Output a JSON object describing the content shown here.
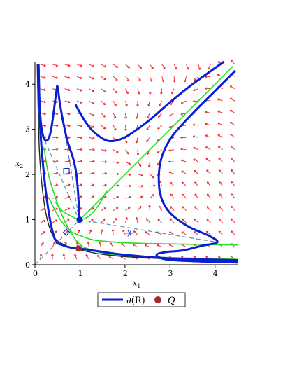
{
  "chart_data": {
    "type": "line",
    "title": "",
    "xlabel": "x",
    "xlabel_sub": "1",
    "ylabel": "x",
    "ylabel_sub": "2",
    "xlim": [
      0,
      4.5
    ],
    "ylim": [
      0,
      4.5
    ],
    "xticks": [
      "0",
      "1",
      "2",
      "3",
      "4"
    ],
    "yticks": [
      "0",
      "1",
      "2",
      "3",
      "4"
    ],
    "grid": false,
    "colors": {
      "boundary": "#0a1ed2",
      "separatrix": "#22dd22",
      "field": "#ee2222",
      "dashed": "#5a8cc0",
      "q_marker": "#a52a2a",
      "dark_curve": "#1a2a2a"
    },
    "legend": {
      "placement": "bottom-center",
      "entries": [
        {
          "label": "∂(R)",
          "style": "thick-blue-line"
        },
        {
          "label": "Q",
          "style": "brown-dot"
        }
      ]
    },
    "series": [
      {
        "name": "∂(R)",
        "role": "boundary-left-branch",
        "points": [
          [
            0.08,
            4.45
          ],
          [
            0.1,
            3.6
          ],
          [
            0.15,
            3.0
          ],
          [
            0.24,
            2.75
          ],
          [
            0.35,
            2.95
          ],
          [
            0.47,
            3.8
          ],
          [
            0.5,
            3.95
          ],
          [
            0.55,
            3.6
          ],
          [
            0.62,
            3.2
          ],
          [
            0.72,
            2.75
          ],
          [
            0.85,
            2.35
          ],
          [
            0.92,
            2.0
          ],
          [
            0.97,
            1.4
          ],
          [
            0.98,
            1.0
          ]
        ]
      },
      {
        "name": "∂(R)",
        "role": "boundary-upper-branch",
        "points": [
          [
            0.9,
            3.55
          ],
          [
            1.1,
            3.2
          ],
          [
            1.3,
            2.95
          ],
          [
            1.6,
            2.75
          ],
          [
            1.9,
            2.78
          ],
          [
            2.2,
            2.95
          ],
          [
            2.6,
            3.25
          ],
          [
            3.0,
            3.6
          ],
          [
            3.5,
            4.0
          ],
          [
            4.2,
            4.5
          ]
        ]
      },
      {
        "name": "∂(R)",
        "role": "boundary-right-branch",
        "points": [
          [
            4.45,
            4.3
          ],
          [
            4.0,
            3.85
          ],
          [
            3.5,
            3.35
          ],
          [
            3.05,
            2.85
          ],
          [
            2.82,
            2.4
          ],
          [
            2.75,
            1.95
          ],
          [
            2.8,
            1.5
          ],
          [
            3.0,
            1.15
          ],
          [
            3.4,
            0.85
          ],
          [
            3.85,
            0.65
          ],
          [
            4.05,
            0.5
          ],
          [
            3.7,
            0.42
          ],
          [
            3.3,
            0.32
          ],
          [
            2.9,
            0.28
          ],
          [
            2.7,
            0.22
          ],
          [
            2.9,
            0.12
          ],
          [
            3.5,
            0.08
          ],
          [
            4.5,
            0.05
          ]
        ]
      },
      {
        "name": "∂(R)",
        "role": "boundary-lower-branch",
        "points": [
          [
            0.08,
            4.4
          ],
          [
            0.12,
            3.0
          ],
          [
            0.2,
            2.0
          ],
          [
            0.3,
            1.2
          ],
          [
            0.4,
            0.7
          ],
          [
            0.48,
            0.5
          ],
          [
            0.6,
            0.44
          ],
          [
            0.8,
            0.38
          ],
          [
            1.0,
            0.36
          ],
          [
            1.4,
            0.3
          ],
          [
            2.0,
            0.22
          ],
          [
            3.0,
            0.14
          ],
          [
            4.5,
            0.1
          ]
        ]
      },
      {
        "name": "",
        "role": "separatrix-diagonal",
        "points": [
          [
            1.0,
            1.0
          ],
          [
            2.0,
            2.0
          ],
          [
            3.0,
            3.0
          ],
          [
            4.4,
            4.4
          ]
        ]
      },
      {
        "name": "",
        "role": "separatrix-curve-a",
        "points": [
          [
            0.45,
            1.4
          ],
          [
            0.6,
            1.2
          ],
          [
            0.8,
            1.08
          ],
          [
            1.0,
            1.0
          ],
          [
            1.2,
            1.08
          ],
          [
            1.4,
            1.3
          ],
          [
            1.6,
            1.65
          ]
        ]
      },
      {
        "name": "",
        "role": "separatrix-curve-b",
        "points": [
          [
            0.3,
            1.5
          ],
          [
            0.55,
            1.02
          ],
          [
            0.8,
            0.74
          ],
          [
            1.0,
            0.65
          ],
          [
            1.3,
            0.55
          ],
          [
            1.8,
            0.5
          ],
          [
            2.5,
            0.47
          ],
          [
            4.5,
            0.44
          ]
        ]
      },
      {
        "name": "",
        "role": "separatrix-curve-c",
        "points": [
          [
            0.2,
            2.6
          ],
          [
            0.3,
            2.0
          ],
          [
            0.45,
            1.5
          ],
          [
            0.6,
            1.1
          ],
          [
            0.75,
            0.8
          ],
          [
            0.95,
            0.5
          ],
          [
            1.2,
            0.35
          ],
          [
            2.0,
            0.2
          ],
          [
            4.5,
            0.12
          ]
        ]
      }
    ],
    "markers": [
      {
        "name": "Q",
        "type": "dot",
        "x": 0.97,
        "y": 0.36
      },
      {
        "name": "equilibrium",
        "type": "blue-dot",
        "x": 0.99,
        "y": 1.0
      },
      {
        "name": "square",
        "type": "open-square",
        "x": 0.7,
        "y": 2.07
      },
      {
        "name": "diamond",
        "type": "open-diamond",
        "x": 0.7,
        "y": 0.72
      },
      {
        "name": "star",
        "type": "star",
        "x": 2.1,
        "y": 0.7
      }
    ],
    "dashed_lines": [
      {
        "from": [
          0.0,
          0.0
        ],
        "to": [
          1.0,
          1.0
        ]
      },
      {
        "from": [
          0.5,
          3.95
        ],
        "to": [
          0.98,
          1.0
        ]
      },
      {
        "from": [
          0.98,
          1.0
        ],
        "to": [
          4.05,
          0.5
        ]
      },
      {
        "from": [
          0.22,
          2.75
        ],
        "to": [
          0.98,
          1.0
        ]
      }
    ]
  }
}
